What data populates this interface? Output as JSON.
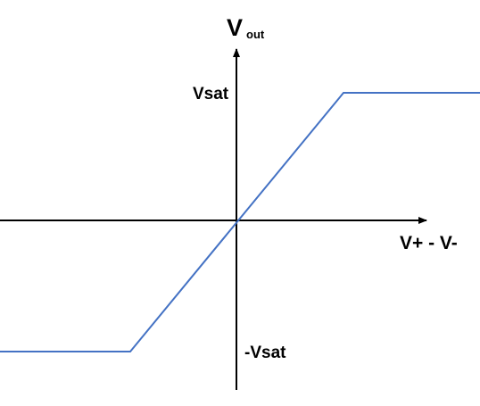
{
  "labels": {
    "y_axis_main": "V",
    "y_axis_sub": "out",
    "x_axis": "V+ - V-",
    "vsat_positive": "Vsat",
    "vsat_negative": "-Vsat"
  },
  "colors": {
    "axes": "#000000",
    "curve": "#4472C4",
    "background": "#FFFFFF"
  }
}
